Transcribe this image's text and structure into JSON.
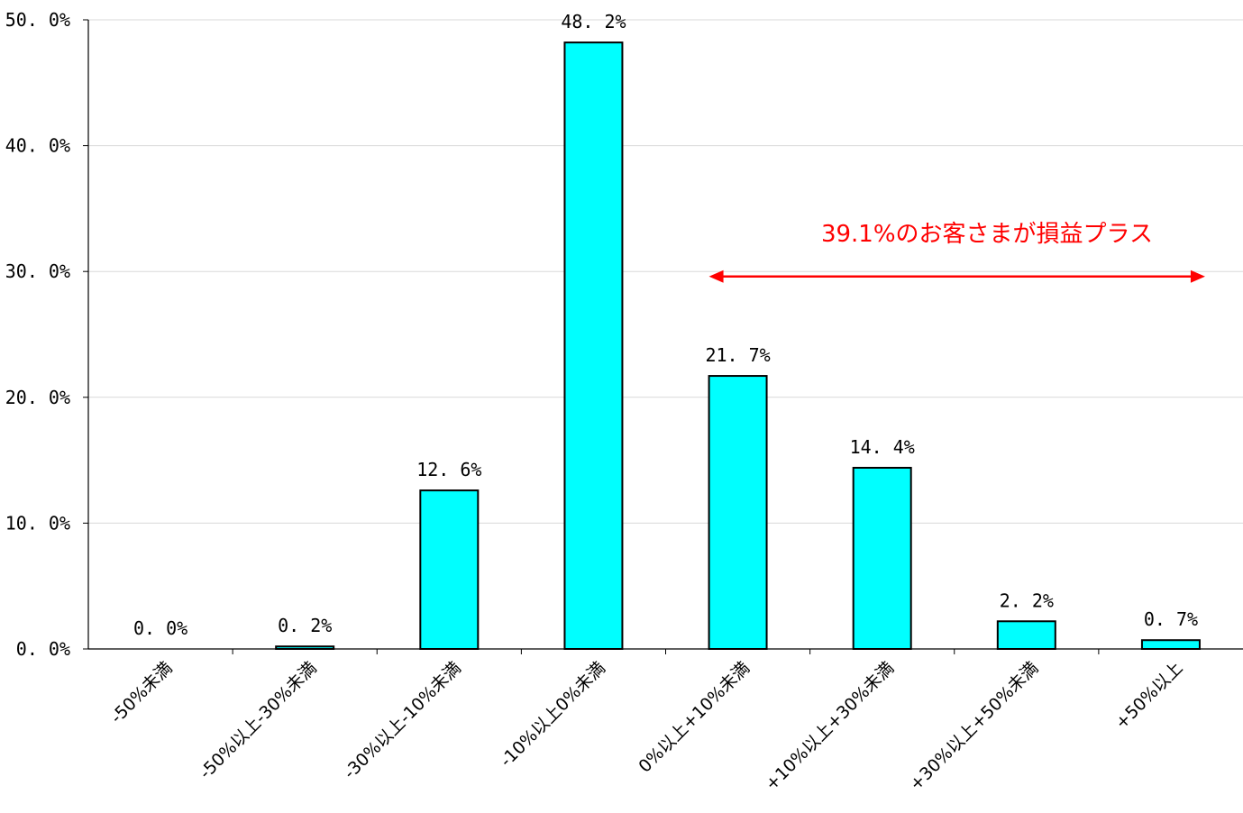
{
  "chart_data": {
    "type": "bar",
    "title": "",
    "xlabel": "",
    "ylabel": "",
    "categories": [
      "-50%未満",
      "-50%以上-30%未満",
      "-30%以上-10%未満",
      "-10%以上0%未満",
      "0%以上+10%未満",
      "+10%以上+30%未満",
      "+30%以上+50%未満",
      "+50%以上"
    ],
    "values": [
      0.0,
      0.2,
      12.6,
      48.2,
      21.7,
      14.4,
      2.2,
      0.7
    ],
    "data_labels": [
      "0. 0%",
      "0. 2%",
      "12. 6%",
      "48. 2%",
      "21. 7%",
      "14. 4%",
      "2. 2%",
      "0. 7%"
    ],
    "ylim": [
      0,
      50
    ],
    "yticks": [
      0,
      10,
      20,
      30,
      40,
      50
    ],
    "ytick_labels": [
      "0. 0%",
      "10. 0%",
      "20. 0%",
      "30. 0%",
      "40. 0%",
      "50. 0%"
    ],
    "grid": true,
    "legend": "none",
    "bar_color": "#00FFFF",
    "bar_edge_color": "#000000",
    "annotation": {
      "text": "39.1%のお客さまが損益プラス",
      "color": "#FF0000",
      "arrow_from_category": 4,
      "arrow_to_category": 7,
      "arrow_y": 29.6
    }
  }
}
